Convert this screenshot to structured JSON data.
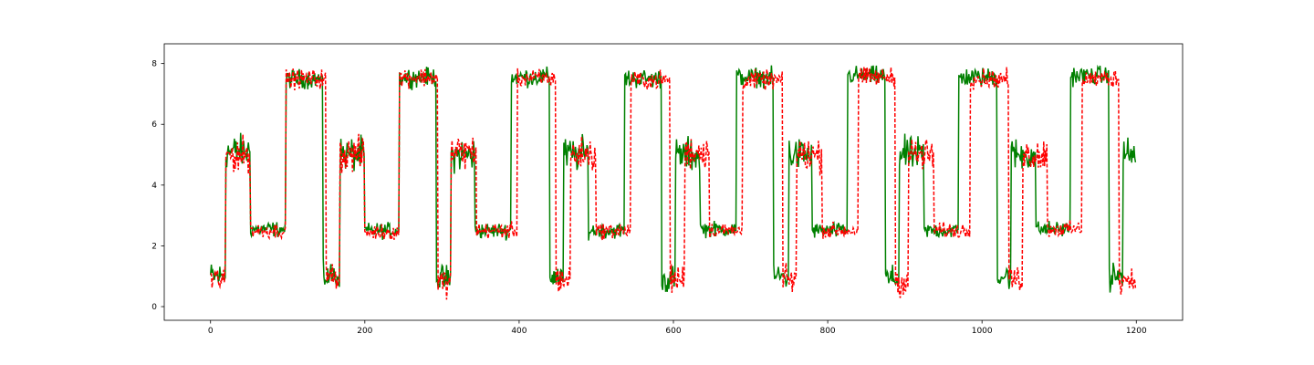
{
  "chart_data": {
    "type": "line",
    "title": "",
    "xlabel": "",
    "ylabel": "",
    "xlim": [
      -60,
      1260
    ],
    "ylim": [
      -0.45,
      8.65
    ],
    "xticks": [
      0,
      200,
      400,
      600,
      800,
      1000,
      1200
    ],
    "yticks": [
      0,
      2,
      4,
      6,
      8
    ],
    "grid": false,
    "legend": "none",
    "series": [
      {
        "color": "#008000",
        "style": "solid",
        "segments": [
          {
            "x0": 0,
            "x1": 20,
            "y": 1.0
          },
          {
            "x0": 20,
            "x1": 52,
            "y": 5.1
          },
          {
            "x0": 52,
            "x1": 98,
            "y": 2.55
          },
          {
            "x0": 98,
            "x1": 146,
            "y": 7.5
          },
          {
            "x0": 146,
            "x1": 168,
            "y": 1.0
          },
          {
            "x0": 168,
            "x1": 200,
            "y": 5.0
          },
          {
            "x0": 200,
            "x1": 245,
            "y": 2.5
          },
          {
            "x0": 245,
            "x1": 293,
            "y": 7.55
          },
          {
            "x0": 293,
            "x1": 312,
            "y": 0.9
          },
          {
            "x0": 312,
            "x1": 343,
            "y": 5.0
          },
          {
            "x0": 343,
            "x1": 390,
            "y": 2.5
          },
          {
            "x0": 390,
            "x1": 440,
            "y": 7.55
          },
          {
            "x0": 440,
            "x1": 458,
            "y": 1.0
          },
          {
            "x0": 458,
            "x1": 490,
            "y": 5.0
          },
          {
            "x0": 490,
            "x1": 537,
            "y": 2.5
          },
          {
            "x0": 537,
            "x1": 585,
            "y": 7.5
          },
          {
            "x0": 585,
            "x1": 603,
            "y": 0.9
          },
          {
            "x0": 603,
            "x1": 635,
            "y": 5.0
          },
          {
            "x0": 635,
            "x1": 682,
            "y": 2.55
          },
          {
            "x0": 682,
            "x1": 730,
            "y": 7.55
          },
          {
            "x0": 730,
            "x1": 750,
            "y": 1.0
          },
          {
            "x0": 750,
            "x1": 780,
            "y": 5.0
          },
          {
            "x0": 780,
            "x1": 826,
            "y": 2.5
          },
          {
            "x0": 826,
            "x1": 875,
            "y": 7.6
          },
          {
            "x0": 875,
            "x1": 893,
            "y": 0.9
          },
          {
            "x0": 893,
            "x1": 925,
            "y": 5.0
          },
          {
            "x0": 925,
            "x1": 970,
            "y": 2.5
          },
          {
            "x0": 970,
            "x1": 1020,
            "y": 7.55
          },
          {
            "x0": 1020,
            "x1": 1038,
            "y": 1.0
          },
          {
            "x0": 1038,
            "x1": 1070,
            "y": 5.0
          },
          {
            "x0": 1070,
            "x1": 1115,
            "y": 2.55
          },
          {
            "x0": 1115,
            "x1": 1165,
            "y": 7.6
          },
          {
            "x0": 1165,
            "x1": 1183,
            "y": 1.0
          },
          {
            "x0": 1183,
            "x1": 1200,
            "y": 5.0
          }
        ]
      },
      {
        "color": "#ff0000",
        "style": "dashed",
        "segments": [
          {
            "x0": 0,
            "x1": 20,
            "y": 0.9
          },
          {
            "x0": 20,
            "x1": 52,
            "y": 5.0
          },
          {
            "x0": 52,
            "x1": 98,
            "y": 2.5
          },
          {
            "x0": 98,
            "x1": 150,
            "y": 7.5
          },
          {
            "x0": 150,
            "x1": 168,
            "y": 1.0
          },
          {
            "x0": 168,
            "x1": 200,
            "y": 5.0
          },
          {
            "x0": 200,
            "x1": 245,
            "y": 2.45
          },
          {
            "x0": 245,
            "x1": 295,
            "y": 7.55
          },
          {
            "x0": 295,
            "x1": 312,
            "y": 0.8
          },
          {
            "x0": 312,
            "x1": 345,
            "y": 5.1
          },
          {
            "x0": 345,
            "x1": 398,
            "y": 2.5
          },
          {
            "x0": 398,
            "x1": 448,
            "y": 7.5
          },
          {
            "x0": 448,
            "x1": 467,
            "y": 0.9
          },
          {
            "x0": 467,
            "x1": 500,
            "y": 5.0
          },
          {
            "x0": 500,
            "x1": 545,
            "y": 2.5
          },
          {
            "x0": 545,
            "x1": 596,
            "y": 7.45
          },
          {
            "x0": 596,
            "x1": 615,
            "y": 0.9
          },
          {
            "x0": 615,
            "x1": 647,
            "y": 5.1
          },
          {
            "x0": 647,
            "x1": 690,
            "y": 2.5
          },
          {
            "x0": 690,
            "x1": 742,
            "y": 7.45
          },
          {
            "x0": 742,
            "x1": 760,
            "y": 0.9
          },
          {
            "x0": 760,
            "x1": 793,
            "y": 5.0
          },
          {
            "x0": 793,
            "x1": 840,
            "y": 2.5
          },
          {
            "x0": 840,
            "x1": 888,
            "y": 7.55
          },
          {
            "x0": 888,
            "x1": 905,
            "y": 0.8
          },
          {
            "x0": 905,
            "x1": 938,
            "y": 5.0
          },
          {
            "x0": 938,
            "x1": 985,
            "y": 2.5
          },
          {
            "x0": 985,
            "x1": 1035,
            "y": 7.5
          },
          {
            "x0": 1035,
            "x1": 1053,
            "y": 0.9
          },
          {
            "x0": 1053,
            "x1": 1085,
            "y": 5.0
          },
          {
            "x0": 1085,
            "x1": 1130,
            "y": 2.55
          },
          {
            "x0": 1130,
            "x1": 1178,
            "y": 7.5
          },
          {
            "x0": 1178,
            "x1": 1200,
            "y": 0.9
          }
        ]
      }
    ]
  }
}
